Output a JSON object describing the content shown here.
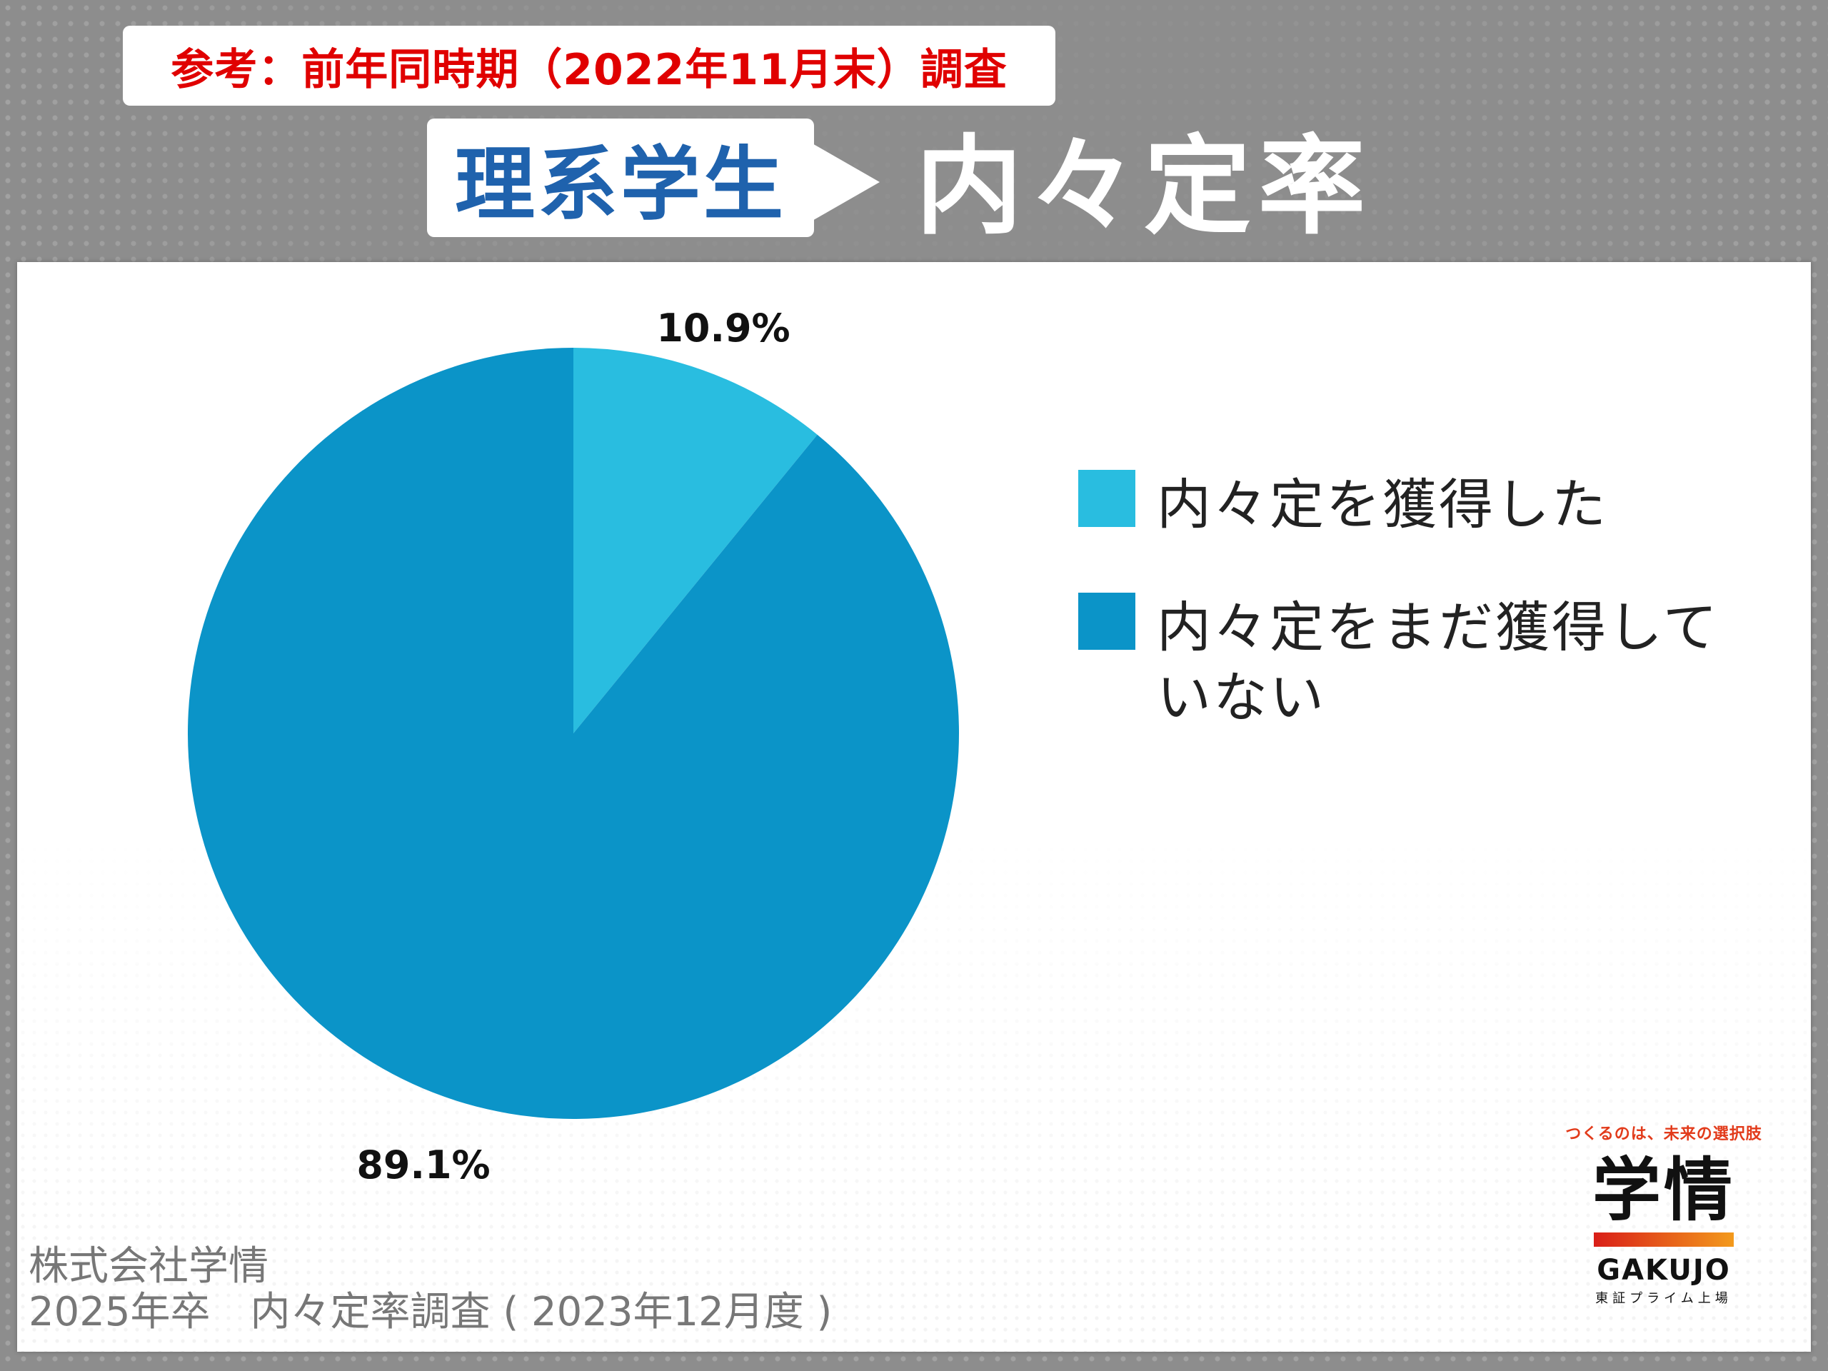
{
  "reference_label": "参考：前年同時期（2022年11月末）調査",
  "title": {
    "segment": "理系学生",
    "metric": "内々定率"
  },
  "chart_data": {
    "type": "pie",
    "categories": [
      "内々定を獲得した",
      "内々定をまだ獲得していない"
    ],
    "values": [
      10.9,
      89.1
    ],
    "value_labels": [
      "10.9%",
      "89.1%"
    ],
    "colors": [
      "#29bde0",
      "#0b94c8"
    ],
    "start_angle": "12 o'clock",
    "direction": "clockwise",
    "legend_placement": "right"
  },
  "legend": [
    {
      "label_line1": "内々定を獲得した",
      "label_line2": "",
      "color": "#29bde0"
    },
    {
      "label_line1": "内々定をまだ獲得して",
      "label_line2": "いない",
      "color": "#0b94c8"
    }
  ],
  "source": {
    "line1": "株式会社学情",
    "line2": "2025年卒　内々定率調査 ( 2023年12月度 )"
  },
  "logo": {
    "tagline": "つくるのは、未来の選択肢",
    "mark": "学情",
    "name": "GAKUJO",
    "sub": "東証プライム上場"
  }
}
